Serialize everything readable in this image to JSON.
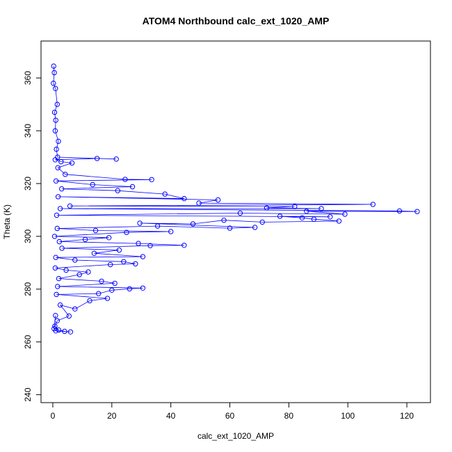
{
  "chart_data": {
    "type": "scatter",
    "title": "ATOM4 Northbound calc_ext_1020_AMP",
    "xlabel": "calc_ext_1020_AMP",
    "ylabel": "Theta (K)",
    "xlim": [
      -4,
      128
    ],
    "ylim": [
      237,
      374
    ],
    "xticks": [
      0,
      20,
      40,
      60,
      80,
      100,
      120
    ],
    "yticks": [
      240,
      260,
      280,
      300,
      320,
      340,
      360
    ],
    "grid": false,
    "legend": "none",
    "marker": "open-circle",
    "connected": true,
    "color": "#0000ff",
    "series": [
      {
        "points": [
          [
            0.3,
            364.5
          ],
          [
            0.5,
            362
          ],
          [
            0.2,
            358
          ],
          [
            0.9,
            356
          ],
          [
            1.5,
            350
          ],
          [
            0.6,
            347
          ],
          [
            1.0,
            344
          ],
          [
            0.8,
            340
          ],
          [
            1.9,
            336
          ],
          [
            1.2,
            333
          ],
          [
            1.6,
            330
          ],
          [
            21.5,
            329.3
          ],
          [
            15.0,
            329.5
          ],
          [
            0.8,
            329
          ],
          [
            2.8,
            328.3
          ],
          [
            6.5,
            327.8
          ],
          [
            1.7,
            326
          ],
          [
            4.2,
            323.5
          ],
          [
            24.5,
            321.6
          ],
          [
            33.5,
            321.5
          ],
          [
            1.1,
            321
          ],
          [
            13.5,
            319.6
          ],
          [
            27.0,
            318.8
          ],
          [
            3.0,
            318
          ],
          [
            22.0,
            317.3
          ],
          [
            38.0,
            316
          ],
          [
            44.5,
            314.3
          ],
          [
            1.8,
            315
          ],
          [
            56.0,
            313.8
          ],
          [
            49.5,
            312.6
          ],
          [
            108.5,
            312.1
          ],
          [
            5.8,
            311.5
          ],
          [
            82.0,
            311.3
          ],
          [
            72.5,
            310.8
          ],
          [
            91.0,
            310.5
          ],
          [
            2.5,
            310.5
          ],
          [
            117.5,
            309.6
          ],
          [
            123.5,
            309.4
          ],
          [
            86.0,
            309.5
          ],
          [
            99.0,
            308.4
          ],
          [
            63.5,
            308.8
          ],
          [
            1.3,
            308
          ],
          [
            94.0,
            307.4
          ],
          [
            77.0,
            307.6
          ],
          [
            84.5,
            307.0
          ],
          [
            88.5,
            306.5
          ],
          [
            97.0,
            305.8
          ],
          [
            71.0,
            305.4
          ],
          [
            58.0,
            306.1
          ],
          [
            47.5,
            304.7
          ],
          [
            29.5,
            305.0
          ],
          [
            68.5,
            303.4
          ],
          [
            60.0,
            303.1
          ],
          [
            35.5,
            303.9
          ],
          [
            1.5,
            303
          ],
          [
            14.5,
            302.2
          ],
          [
            40.0,
            301.8
          ],
          [
            25.0,
            301.5
          ],
          [
            0.6,
            300
          ],
          [
            19.0,
            299.5
          ],
          [
            11.0,
            298.8
          ],
          [
            2.2,
            298
          ],
          [
            29.0,
            297.3
          ],
          [
            44.5,
            296.6
          ],
          [
            33.0,
            296.5
          ],
          [
            3.1,
            295.5
          ],
          [
            22.5,
            294.8
          ],
          [
            14.0,
            293.6
          ],
          [
            30.5,
            292.3
          ],
          [
            1.0,
            292
          ],
          [
            7.5,
            291.0
          ],
          [
            24.0,
            290.4
          ],
          [
            28.0,
            289.6
          ],
          [
            19.5,
            289.3
          ],
          [
            0.8,
            288
          ],
          [
            4.5,
            287.2
          ],
          [
            12.0,
            286.5
          ],
          [
            9.0,
            285.5
          ],
          [
            2.0,
            284
          ],
          [
            16.5,
            283.0
          ],
          [
            21.0,
            282.2
          ],
          [
            1.6,
            281
          ],
          [
            30.5,
            280.4
          ],
          [
            26.0,
            280.1
          ],
          [
            20.0,
            279.6
          ],
          [
            15.5,
            278.3
          ],
          [
            1.2,
            278
          ],
          [
            18.5,
            276.5
          ],
          [
            12.5,
            275.6
          ],
          [
            7.5,
            272.5
          ],
          [
            2.5,
            274
          ],
          [
            5.5,
            269.8
          ],
          [
            1.5,
            268
          ],
          [
            0.7,
            266
          ],
          [
            2.0,
            264.5
          ],
          [
            4.0,
            264.0
          ],
          [
            6.0,
            263.8
          ],
          [
            1.0,
            264.2
          ],
          [
            0.4,
            265
          ],
          [
            0.9,
            270
          ]
        ]
      }
    ]
  }
}
